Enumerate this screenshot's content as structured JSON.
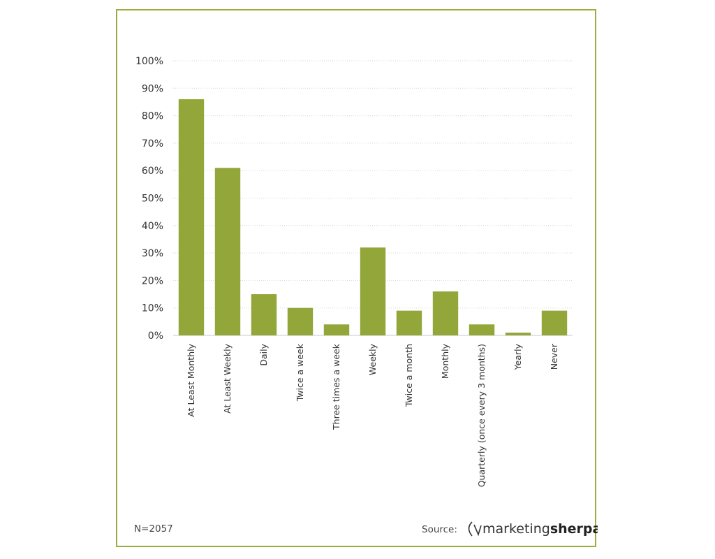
{
  "chart_data": {
    "type": "bar",
    "categories": [
      "At Least Monthly",
      "At Least Weekly",
      "Daily",
      "Twice a week",
      "Three times a week",
      "Weekly",
      "Twice a month",
      "Monthly",
      "Quarterly (once every 3 months)",
      "Yearly",
      "Never"
    ],
    "values": [
      86,
      61,
      15,
      10,
      4,
      32,
      9,
      16,
      4,
      1,
      9
    ],
    "ylim": [
      0,
      100
    ],
    "yticks": [
      "0%",
      "10%",
      "20%",
      "30%",
      "40%",
      "50%",
      "60%",
      "70%",
      "80%",
      "90%",
      "100%"
    ],
    "grid": true,
    "bar_color": "#92a63a",
    "frame_color": "#9aae3f"
  },
  "footer": {
    "sample_size": "N=2057",
    "source_label": "Source:",
    "brand_light": "marketing",
    "brand_bold": "sherpa"
  }
}
